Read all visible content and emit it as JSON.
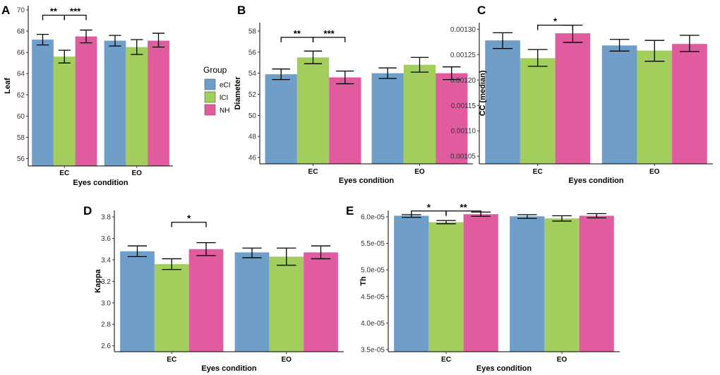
{
  "colors": {
    "eCI": "#6f9fc8",
    "lCI": "#a3cd5c",
    "NH": "#e05c9f",
    "axis": "#000000",
    "errorbar": "#000000"
  },
  "legend": {
    "title": "Group",
    "items": [
      {
        "key": "eCI",
        "label": "eCI"
      },
      {
        "key": "lCI",
        "label": "lCI"
      },
      {
        "key": "NH",
        "label": "NH"
      }
    ]
  },
  "chart_data": [
    {
      "id": "A",
      "panel_label": "A",
      "type": "bar",
      "xlabel": "Eyes condition",
      "ylabel": "Leaf",
      "categories": [
        "EC",
        "EO"
      ],
      "ylim": [
        55.3,
        70.4
      ],
      "yticks": [
        56,
        58,
        60,
        62,
        64,
        66,
        68,
        70
      ],
      "ytick_labels": [
        "56",
        "58",
        "60",
        "62",
        "64",
        "66",
        "68",
        "70"
      ],
      "series": [
        {
          "name": "eCI",
          "values": [
            67.2,
            67.1
          ],
          "err_low": [
            66.7,
            66.6
          ],
          "err_high": [
            67.7,
            67.6
          ]
        },
        {
          "name": "lCI",
          "values": [
            65.6,
            66.5
          ],
          "err_low": [
            65.0,
            65.8
          ],
          "err_high": [
            66.2,
            67.2
          ]
        },
        {
          "name": "NH",
          "values": [
            67.5,
            67.1
          ],
          "err_low": [
            66.9,
            66.5
          ],
          "err_high": [
            68.1,
            67.8
          ]
        }
      ],
      "annotations": [
        {
          "text": "**",
          "category": "EC",
          "from": "eCI",
          "to": "lCI",
          "y": 69.5
        },
        {
          "text": "***",
          "category": "EC",
          "from": "lCI",
          "to": "NH",
          "y": 69.5
        }
      ]
    },
    {
      "id": "B",
      "panel_label": "B",
      "type": "bar",
      "xlabel": "Eyes condition",
      "ylabel": "Diameter",
      "categories": [
        "EC",
        "EO"
      ],
      "ylim": [
        45.4,
        58.8
      ],
      "yticks": [
        46,
        48,
        50,
        52,
        54,
        56,
        58
      ],
      "ytick_labels": [
        "46",
        "48",
        "50",
        "52",
        "54",
        "56",
        "58"
      ],
      "series": [
        {
          "name": "eCI",
          "values": [
            53.9,
            54.0
          ],
          "err_low": [
            53.4,
            53.5
          ],
          "err_high": [
            54.4,
            54.5
          ]
        },
        {
          "name": "lCI",
          "values": [
            55.5,
            54.8
          ],
          "err_low": [
            54.9,
            54.1
          ],
          "err_high": [
            56.1,
            55.5
          ]
        },
        {
          "name": "NH",
          "values": [
            53.6,
            54.0
          ],
          "err_low": [
            53.0,
            53.4
          ],
          "err_high": [
            54.2,
            54.6
          ]
        }
      ],
      "annotations": [
        {
          "text": "**",
          "category": "EC",
          "from": "eCI",
          "to": "lCI",
          "y": 57.4
        },
        {
          "text": "***",
          "category": "EC",
          "from": "lCI",
          "to": "NH",
          "y": 57.4
        }
      ]
    },
    {
      "id": "C",
      "panel_label": "C",
      "type": "bar",
      "xlabel": "Eyes condition",
      "ylabel": "CC (median)",
      "categories": [
        "EC",
        "EO"
      ],
      "ylim": [
        0.001035,
        0.001313
      ],
      "yticks": [
        0.00105,
        0.0011,
        0.00115,
        0.0012,
        0.00125,
        0.0013
      ],
      "ytick_labels": [
        "0.00105",
        "0.00110",
        "0.00115",
        "0.00120",
        "0.00125",
        "0.00130"
      ],
      "series": [
        {
          "name": "eCI",
          "values": [
            0.001278,
            0.001268
          ],
          "err_low": [
            0.001262,
            0.001257
          ],
          "err_high": [
            0.001293,
            0.00128
          ]
        },
        {
          "name": "lCI",
          "values": [
            0.001243,
            0.001258
          ],
          "err_low": [
            0.001227,
            0.001237
          ],
          "err_high": [
            0.00126,
            0.001278
          ]
        },
        {
          "name": "NH",
          "values": [
            0.001292,
            0.001271
          ],
          "err_low": [
            0.001274,
            0.001256
          ],
          "err_high": [
            0.001308,
            0.001288
          ]
        }
      ],
      "annotations": [
        {
          "text": "*",
          "category": "EC",
          "from": "lCI",
          "to": "NH",
          "y": 0.001308
        }
      ]
    },
    {
      "id": "D",
      "panel_label": "D",
      "type": "bar",
      "xlabel": "Eyes condition",
      "ylabel": "Kappa",
      "categories": [
        "EC",
        "EO"
      ],
      "ylim": [
        2.545,
        3.86
      ],
      "yticks": [
        2.6,
        2.8,
        3.0,
        3.2,
        3.4,
        3.6,
        3.8
      ],
      "ytick_labels": [
        "2.6",
        "2.8",
        "3.0",
        "3.2",
        "3.4",
        "3.6",
        "3.8"
      ],
      "series": [
        {
          "name": "eCI",
          "values": [
            3.48,
            3.47
          ],
          "err_low": [
            3.43,
            3.42
          ],
          "err_high": [
            3.53,
            3.51
          ]
        },
        {
          "name": "lCI",
          "values": [
            3.36,
            3.43
          ],
          "err_low": [
            3.31,
            3.35
          ],
          "err_high": [
            3.41,
            3.51
          ]
        },
        {
          "name": "NH",
          "values": [
            3.5,
            3.47
          ],
          "err_low": [
            3.44,
            3.41
          ],
          "err_high": [
            3.56,
            3.53
          ]
        }
      ],
      "annotations": [
        {
          "text": "*",
          "category": "EC",
          "from": "lCI",
          "to": "NH",
          "y": 3.75
        }
      ]
    },
    {
      "id": "E",
      "panel_label": "E",
      "type": "bar",
      "xlabel": "Eyes condition",
      "ylabel": "Th",
      "categories": [
        "EC",
        "EO"
      ],
      "ylim": [
        3.46e-05,
        6.12e-05
      ],
      "yticks": [
        3.5e-05,
        4e-05,
        4.5e-05,
        5e-05,
        5.5e-05,
        6e-05
      ],
      "ytick_labels": [
        "3.5e-05",
        "4.0e-05",
        "4.5e-05",
        "5.0e-05",
        "5.5e-05",
        "6.0e-05"
      ],
      "series": [
        {
          "name": "eCI",
          "values": [
            6.02e-05,
            6.01e-05
          ],
          "err_low": [
            5.99e-05,
            5.97e-05
          ],
          "err_high": [
            6.04e-05,
            6.04e-05
          ]
        },
        {
          "name": "lCI",
          "values": [
            5.9e-05,
            5.97e-05
          ],
          "err_low": [
            5.87e-05,
            5.92e-05
          ],
          "err_high": [
            5.93e-05,
            6.02e-05
          ]
        },
        {
          "name": "NH",
          "values": [
            6.05e-05,
            6.02e-05
          ],
          "err_low": [
            6.01e-05,
            5.98e-05
          ],
          "err_high": [
            6.09e-05,
            6.06e-05
          ]
        }
      ],
      "annotations": [
        {
          "text": "*",
          "category": "EC",
          "from": "eCI",
          "to": "lCI",
          "y": 6.11e-05
        },
        {
          "text": "**",
          "category": "EC",
          "from": "lCI",
          "to": "NH",
          "y": 6.11e-05
        }
      ]
    }
  ]
}
